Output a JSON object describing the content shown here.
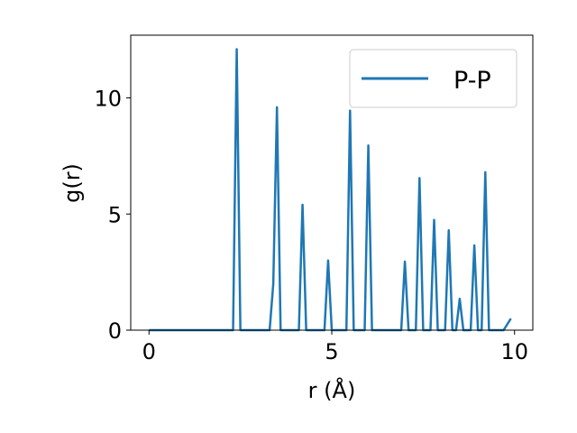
{
  "chart_data": {
    "type": "line",
    "xlabel": "r (Å)",
    "ylabel": "g(r)",
    "xlim": [
      -0.5,
      10.5
    ],
    "ylim": [
      0,
      12.7
    ],
    "xticks": [
      0,
      5,
      10
    ],
    "yticks": [
      0,
      5,
      10
    ],
    "grid": false,
    "legend_position": "top-right",
    "series": [
      {
        "name": "P-P",
        "color": "#1f77b4",
        "x": [
          0.0,
          2.3,
          2.4,
          2.5,
          3.3,
          3.4,
          3.5,
          3.6,
          4.1,
          4.2,
          4.3,
          4.8,
          4.9,
          5.0,
          5.4,
          5.5,
          5.6,
          5.9,
          6.0,
          6.1,
          6.9,
          7.0,
          7.1,
          7.3,
          7.4,
          7.5,
          7.7,
          7.8,
          7.9,
          8.1,
          8.2,
          8.3,
          8.4,
          8.5,
          8.6,
          8.8,
          8.9,
          9.0,
          9.1,
          9.2,
          9.3,
          9.7,
          9.9
        ],
        "y": [
          0.0,
          0.0,
          12.1,
          0.0,
          0.0,
          2.0,
          9.6,
          0.0,
          0.0,
          5.4,
          0.0,
          0.0,
          3.0,
          0.0,
          0.0,
          9.45,
          0.0,
          0.0,
          7.95,
          0.0,
          0.0,
          2.95,
          0.0,
          0.0,
          6.55,
          0.0,
          0.0,
          4.75,
          0.0,
          0.0,
          4.3,
          0.0,
          0.0,
          1.35,
          0.0,
          0.0,
          3.65,
          0.0,
          0.0,
          6.8,
          0.0,
          0.0,
          0.5
        ]
      }
    ]
  }
}
